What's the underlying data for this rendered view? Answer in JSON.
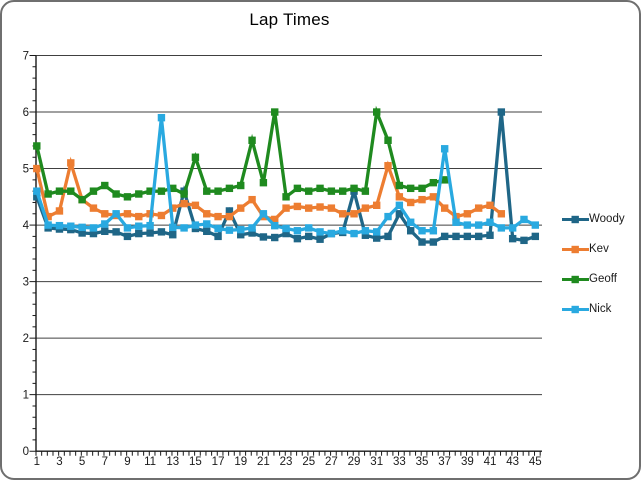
{
  "chart_data": {
    "type": "line",
    "title": "Lap Times",
    "xlabel": "",
    "ylabel": "",
    "ylim": [
      0,
      7
    ],
    "x_range": [
      1,
      45
    ],
    "y_tick_labels": [
      "0",
      "1",
      "2",
      "3",
      "4",
      "5",
      "6",
      "7"
    ],
    "x_tick_labels": [
      "1",
      "3",
      "5",
      "7",
      "9",
      "11",
      "13",
      "15",
      "17",
      "19",
      "21",
      "23",
      "25",
      "27",
      "29",
      "31",
      "33",
      "35",
      "37",
      "39",
      "41",
      "43",
      "45"
    ],
    "layout": {
      "legend_position": "right",
      "grid": "horizontal-major",
      "marker": "square",
      "background": "#ffffff",
      "gridline_color": "#404040",
      "axis_color": "#1a1a1a",
      "tick_label_color": "#1a1a1a"
    },
    "series": [
      {
        "name": "Woody",
        "color": "#1F6687",
        "values": [
          4.5,
          3.95,
          3.93,
          3.92,
          3.86,
          3.85,
          3.89,
          3.88,
          3.8,
          3.85,
          3.86,
          3.88,
          3.83,
          4.6,
          3.94,
          3.89,
          3.8,
          4.25,
          3.83,
          3.86,
          3.79,
          3.78,
          3.85,
          3.76,
          3.8,
          3.75,
          3.85,
          3.87,
          4.6,
          3.82,
          3.77,
          3.8,
          4.2,
          3.9,
          3.7,
          3.7,
          3.8,
          3.8,
          3.8,
          3.8,
          3.82,
          6.0,
          3.76,
          3.73,
          3.8
        ]
      },
      {
        "name": "Kev",
        "color": "#ED7D31",
        "values": [
          5.0,
          4.15,
          4.25,
          5.1,
          4.45,
          4.3,
          4.2,
          4.17,
          4.2,
          4.15,
          4.2,
          4.17,
          4.3,
          4.38,
          4.35,
          4.2,
          4.15,
          4.15,
          4.3,
          4.45,
          4.15,
          4.1,
          4.3,
          4.33,
          4.3,
          4.32,
          4.3,
          4.2,
          4.2,
          4.3,
          4.35,
          5.05,
          4.5,
          4.4,
          4.45,
          4.5,
          4.3,
          4.15,
          4.2,
          4.3,
          4.35,
          4.2,
          null,
          null,
          null
        ]
      },
      {
        "name": "Geoff",
        "color": "#1F8A1F",
        "values": [
          5.4,
          4.55,
          4.6,
          4.6,
          4.45,
          4.6,
          4.7,
          4.55,
          4.5,
          4.55,
          4.6,
          4.6,
          4.65,
          4.55,
          5.2,
          4.6,
          4.6,
          4.65,
          4.7,
          5.5,
          4.75,
          6.0,
          4.5,
          4.65,
          4.6,
          4.65,
          4.6,
          4.6,
          4.65,
          4.6,
          6.0,
          5.5,
          4.7,
          4.65,
          4.65,
          4.75,
          4.8,
          null,
          null,
          null,
          null,
          null,
          null,
          null,
          null
        ]
      },
      {
        "name": "Nick",
        "color": "#29A9E0",
        "values": [
          4.6,
          4.0,
          3.99,
          3.98,
          3.96,
          3.95,
          4.02,
          4.2,
          3.95,
          3.98,
          3.99,
          5.9,
          3.96,
          3.95,
          4.0,
          4.02,
          3.94,
          3.91,
          3.92,
          3.95,
          4.2,
          3.99,
          3.94,
          3.9,
          3.95,
          3.88,
          3.85,
          3.9,
          3.85,
          3.9,
          3.88,
          4.15,
          4.35,
          4.05,
          3.9,
          3.9,
          5.35,
          4.05,
          4.0,
          4.0,
          4.05,
          3.95,
          3.95,
          4.1,
          4.0
        ]
      }
    ]
  }
}
